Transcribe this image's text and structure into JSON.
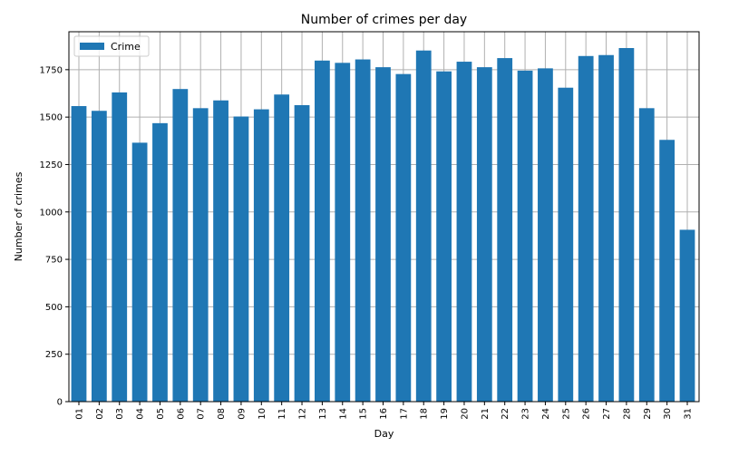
{
  "chart_data": {
    "type": "bar",
    "title": "Number of crimes per day",
    "xlabel": "Day",
    "ylabel": "Number of crimes",
    "ylim": [
      0,
      1950
    ],
    "yticks": [
      0,
      250,
      500,
      750,
      1000,
      1250,
      1500,
      1750
    ],
    "grid": true,
    "legend_position": "top-left",
    "categories": [
      "01",
      "02",
      "03",
      "04",
      "05",
      "06",
      "07",
      "08",
      "09",
      "10",
      "11",
      "12",
      "13",
      "14",
      "15",
      "16",
      "17",
      "18",
      "19",
      "20",
      "21",
      "22",
      "23",
      "24",
      "25",
      "26",
      "27",
      "28",
      "29",
      "30",
      "31"
    ],
    "series": [
      {
        "name": "Crime",
        "color": "#1f77b4",
        "values": [
          1558,
          1533,
          1630,
          1365,
          1468,
          1648,
          1547,
          1588,
          1503,
          1541,
          1619,
          1563,
          1798,
          1786,
          1804,
          1763,
          1727,
          1851,
          1741,
          1792,
          1763,
          1811,
          1745,
          1757,
          1655,
          1822,
          1827,
          1864,
          1547,
          1380,
          906
        ]
      }
    ]
  }
}
